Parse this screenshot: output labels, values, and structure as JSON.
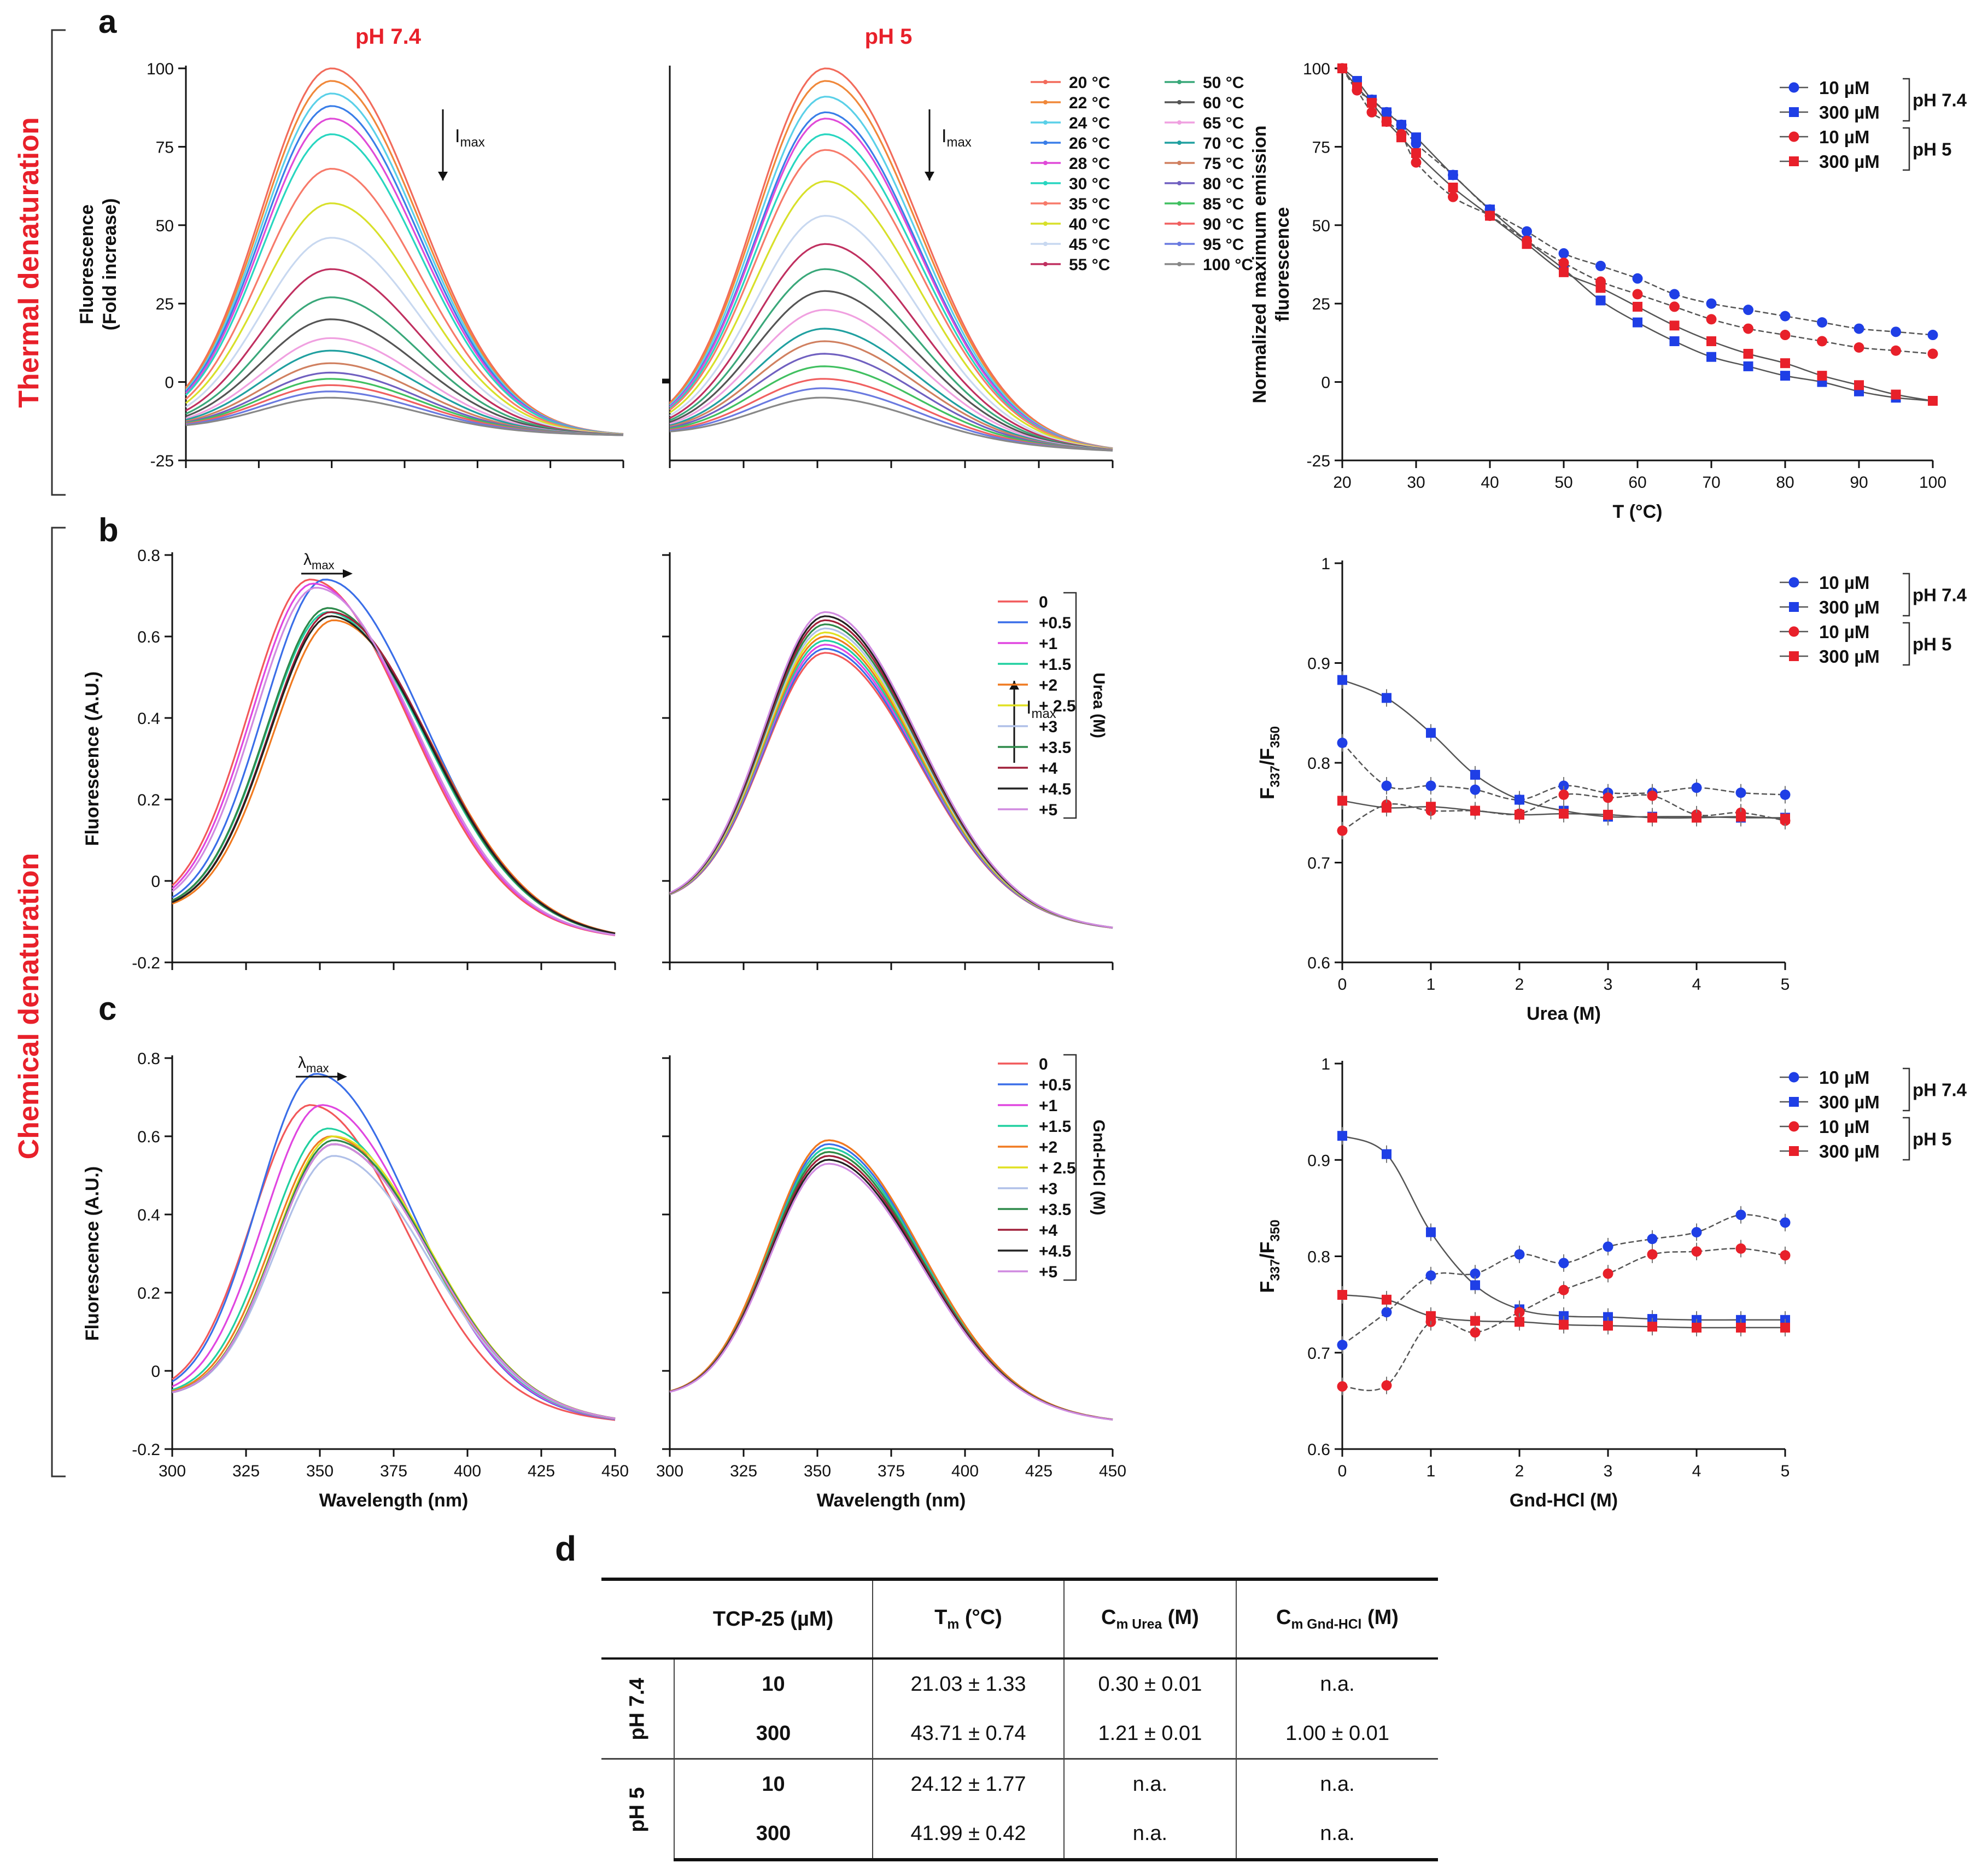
{
  "figure": {
    "section_labels": {
      "thermal": "Thermal denaturation",
      "chemical": "Chemical denaturation"
    },
    "panel_letters": {
      "a": "a",
      "b": "b",
      "c": "c",
      "d": "d"
    },
    "condition_titles": {
      "ph74": "pH 7.4",
      "ph5": "pH 5"
    },
    "colors": {
      "red": "#e8202a",
      "blue": "#1f3fe6",
      "black": "#111111"
    }
  },
  "chart_data": [
    {
      "id": "a1",
      "type": "line",
      "title": "pH 7.4",
      "ylabel": "Fluorescence\n(Fold increase)",
      "xlabel": "",
      "xlim": [
        300,
        450
      ],
      "ylim": [
        -25,
        100
      ],
      "yticks": [
        -25,
        0,
        25,
        50,
        75,
        100
      ],
      "annotation": "Imax (decreasing)",
      "peak_x": 350,
      "series_peaks": [
        100,
        96,
        92,
        88,
        84,
        79,
        68,
        57,
        46,
        36,
        27,
        20,
        14,
        10,
        6,
        3,
        1,
        -1,
        -3,
        -5
      ],
      "start_value": -15,
      "end_value": -17
    },
    {
      "id": "a2",
      "type": "line",
      "title": "pH 5",
      "xlim": [
        300,
        450
      ],
      "ylim": [
        -25,
        100
      ],
      "annotation": "Imax (decreasing)",
      "peak_x": 353,
      "series_peaks": [
        100,
        96,
        91,
        86,
        84,
        79,
        74,
        64,
        53,
        44,
        36,
        29,
        23,
        17,
        13,
        9,
        5,
        1,
        -2,
        -5
      ],
      "start_value": -17,
      "end_value": -22
    },
    {
      "id": "a3",
      "type": "scatter",
      "xlabel": "T (°C)",
      "ylabel": "Normalized maximum emission\nfluorescence",
      "xlim": [
        20,
        100
      ],
      "ylim": [
        -25,
        100
      ],
      "xticks": [
        20,
        30,
        40,
        50,
        60,
        70,
        80,
        90,
        100
      ],
      "yticks": [
        -25,
        0,
        25,
        50,
        75,
        100
      ],
      "x": [
        20,
        22,
        24,
        26,
        28,
        30,
        35,
        40,
        45,
        50,
        55,
        60,
        65,
        70,
        75,
        80,
        85,
        90,
        95,
        100
      ],
      "series": [
        {
          "name": "10 µM pH 7.4",
          "marker": "circle",
          "color": "blue",
          "values": [
            100,
            93,
            90,
            86,
            82,
            76,
            66,
            55,
            48,
            41,
            37,
            33,
            28,
            25,
            23,
            21,
            19,
            17,
            16,
            15
          ]
        },
        {
          "name": "300 µM pH 7.4",
          "marker": "square",
          "color": "blue",
          "values": [
            100,
            96,
            90,
            86,
            82,
            78,
            66,
            55,
            45,
            36,
            26,
            19,
            13,
            8,
            5,
            2,
            0,
            -3,
            -5,
            -6
          ]
        },
        {
          "name": "10 µM pH 5",
          "marker": "circle",
          "color": "red",
          "values": [
            100,
            93,
            86,
            83,
            79,
            70,
            59,
            53,
            45,
            38,
            32,
            28,
            24,
            20,
            17,
            15,
            13,
            11,
            10,
            9
          ]
        },
        {
          "name": "300 µM pH 5",
          "marker": "square",
          "color": "red",
          "values": [
            100,
            94,
            89,
            83,
            78,
            73,
            62,
            53,
            44,
            35,
            30,
            24,
            18,
            13,
            9,
            6,
            2,
            -1,
            -4,
            -6
          ]
        }
      ]
    },
    {
      "id": "b1",
      "type": "line",
      "ylabel": "Fluorescence (A.U.)",
      "xlim": [
        300,
        450
      ],
      "ylim": [
        -0.2,
        0.8
      ],
      "yticks": [
        -0.2,
        0.0,
        0.2,
        0.4,
        0.6,
        0.8
      ],
      "annotation": "λmax (shift right)",
      "series_peaks": [
        0.74,
        0.74,
        0.73,
        0.66,
        0.64,
        0.65,
        0.67,
        0.67,
        0.66,
        0.65,
        0.72
      ],
      "peak_positions": [
        347,
        352,
        348,
        353,
        355,
        354,
        353,
        353,
        354,
        354,
        349
      ],
      "start_value": -0.08,
      "end_value": -0.14
    },
    {
      "id": "b2",
      "type": "line",
      "xlim": [
        300,
        450
      ],
      "ylim": [
        -0.2,
        0.8
      ],
      "annotation": "Imax (increasing)",
      "peak_x": 353,
      "series_peaks": [
        0.56,
        0.57,
        0.58,
        0.59,
        0.6,
        0.61,
        0.62,
        0.63,
        0.64,
        0.65,
        0.66
      ],
      "start_value": -0.06,
      "end_value": -0.12,
      "legend_title": "Urea (M)"
    },
    {
      "id": "b3",
      "type": "scatter",
      "xlabel": "Urea (M)",
      "ylabel": "F337/F350",
      "xlim": [
        0,
        5
      ],
      "ylim": [
        0.6,
        1.0
      ],
      "xticks": [
        0,
        1,
        2,
        3,
        4,
        5
      ],
      "yticks": [
        0.6,
        0.7,
        0.8,
        0.9,
        1.0
      ],
      "x": [
        0,
        0.5,
        1,
        1.5,
        2,
        2.5,
        3,
        3.5,
        4,
        4.5,
        5
      ],
      "series": [
        {
          "name": "10 µM pH 7.4",
          "marker": "circle",
          "color": "blue",
          "values": [
            0.82,
            0.777,
            0.777,
            0.773,
            0.763,
            0.777,
            0.77,
            0.77,
            0.775,
            0.77,
            0.768
          ]
        },
        {
          "name": "300 µM pH 7.4",
          "marker": "square",
          "color": "blue",
          "values": [
            0.883,
            0.865,
            0.83,
            0.788,
            0.763,
            0.752,
            0.746,
            0.746,
            0.746,
            0.745,
            0.745
          ]
        },
        {
          "name": "10 µM pH 5",
          "marker": "circle",
          "color": "red",
          "values": [
            0.732,
            0.758,
            0.752,
            0.752,
            0.749,
            0.768,
            0.765,
            0.767,
            0.748,
            0.75,
            0.742
          ]
        },
        {
          "name": "300 µM pH 5",
          "marker": "square",
          "color": "red",
          "values": [
            0.762,
            0.755,
            0.756,
            0.752,
            0.748,
            0.749,
            0.748,
            0.745,
            0.745,
            0.746,
            0.744
          ]
        }
      ]
    },
    {
      "id": "c1",
      "type": "line",
      "ylabel": "Fluorescence (A.U.)",
      "xlabel": "Wavelength (nm)",
      "xlim": [
        300,
        450
      ],
      "ylim": [
        -0.2,
        0.8
      ],
      "xticks": [
        300,
        325,
        350,
        375,
        400,
        425,
        450
      ],
      "yticks": [
        -0.2,
        0.0,
        0.2,
        0.4,
        0.6,
        0.8
      ],
      "annotation": "λmax (shift right)",
      "series_peaks": [
        0.68,
        0.76,
        0.68,
        0.62,
        0.6,
        0.6,
        0.55,
        0.59,
        0.58,
        0.58,
        0.58
      ],
      "peak_positions": [
        347,
        349,
        351,
        353,
        354,
        355,
        355,
        355,
        355,
        355,
        355
      ],
      "start_value": -0.07,
      "end_value": -0.13
    },
    {
      "id": "c2",
      "type": "line",
      "xlabel": "Wavelength (nm)",
      "xlim": [
        300,
        450
      ],
      "ylim": [
        -0.2,
        0.8
      ],
      "xticks": [
        300,
        325,
        350,
        375,
        400,
        425,
        450
      ],
      "series_peaks": [
        0.59,
        0.58,
        0.57,
        0.57,
        0.59,
        0.56,
        0.55,
        0.56,
        0.55,
        0.54,
        0.53
      ],
      "peak_x": 354,
      "start_value": -0.07,
      "end_value": -0.13,
      "legend_title": "Gnd-HCl (M)"
    },
    {
      "id": "c3",
      "type": "scatter",
      "xlabel": "Gnd-HCl (M)",
      "ylabel": "F337/F350",
      "xlim": [
        0,
        5
      ],
      "ylim": [
        0.6,
        1.0
      ],
      "xticks": [
        0,
        1,
        2,
        3,
        4,
        5
      ],
      "yticks": [
        0.6,
        0.7,
        0.8,
        0.9,
        1.0
      ],
      "x": [
        0,
        0.5,
        1,
        1.5,
        2,
        2.5,
        3,
        3.5,
        4,
        4.5,
        5
      ],
      "series": [
        {
          "name": "10 µM pH 7.4",
          "marker": "circle",
          "color": "blue",
          "values": [
            0.708,
            0.742,
            0.78,
            0.782,
            0.802,
            0.793,
            0.81,
            0.818,
            0.825,
            0.843,
            0.835
          ]
        },
        {
          "name": "300 µM pH 7.4",
          "marker": "square",
          "color": "blue",
          "values": [
            0.925,
            0.906,
            0.825,
            0.77,
            0.745,
            0.738,
            0.737,
            0.735,
            0.734,
            0.734,
            0.734
          ]
        },
        {
          "name": "10 µM pH 5",
          "marker": "circle",
          "color": "red",
          "values": [
            0.665,
            0.666,
            0.732,
            0.721,
            0.742,
            0.765,
            0.782,
            0.802,
            0.805,
            0.808,
            0.801
          ]
        },
        {
          "name": "300 µM pH 5",
          "marker": "square",
          "color": "red",
          "values": [
            0.76,
            0.755,
            0.738,
            0.733,
            0.732,
            0.729,
            0.728,
            0.727,
            0.726,
            0.726,
            0.726
          ]
        }
      ]
    }
  ],
  "legends": {
    "temperature": [
      "20 °C",
      "22 °C",
      "24 °C",
      "26 °C",
      "28 °C",
      "30 °C",
      "35 °C",
      "40 °C",
      "45 °C",
      "55 °C",
      "50 °C",
      "60 °C",
      "65 °C",
      "70 °C",
      "75 °C",
      "80 °C",
      "85 °C",
      "90 °C",
      "95 °C",
      "100 °C"
    ],
    "temperature_colors": [
      "#f26b5b",
      "#f0883a",
      "#5ad0e8",
      "#3a7ee8",
      "#e04ad8",
      "#28d6c0",
      "#f77a6a",
      "#d8e02a",
      "#c8d8f0",
      "#c03060",
      "#3aa87a",
      "#555555",
      "#f0a0e0",
      "#20a0a0",
      "#d08060",
      "#7060c0",
      "#40c060",
      "#f06060",
      "#6a7ae0",
      "#888888"
    ],
    "concentration": [
      "0",
      "+0.5",
      "+1",
      "+1.5",
      "+2",
      "+ 2.5",
      "+3",
      "+3.5",
      "+4",
      "+4.5",
      "+5"
    ],
    "concentration_colors": [
      "#f2585a",
      "#3a6ee8",
      "#e046e0",
      "#20d0a0",
      "#f07a20",
      "#e0e020",
      "#b0c0e8",
      "#2e8a4a",
      "#a0203a",
      "#222222",
      "#d08ae0"
    ],
    "scatter_entries": [
      "10 µM",
      "300 µM",
      "10 µM",
      "300 µM"
    ],
    "scatter_groups": [
      "pH 7.4",
      "pH 5"
    ]
  },
  "annotations": {
    "imax": "I",
    "imax_sub": "max",
    "lmax": "λ",
    "lmax_sub": "max",
    "ratio_main": "F",
    "ratio_sub1": "337",
    "ratio_slash": "/F",
    "ratio_sub2": "350"
  },
  "table": {
    "headers": [
      "TCP-25 (µM)",
      "Tm (°C)",
      "Cm Urea (M)",
      "Cm Gnd-HCl (M)"
    ],
    "header_main": {
      "tm": "T",
      "tm_sub": "m",
      "tm_unit": " (°C)",
      "cm": "C",
      "cm_sub_urea": "m Urea",
      "cm_sub_gnd": "m Gnd-HCl",
      "cm_unit": " (M)"
    },
    "groups": [
      {
        "label": "pH 7.4",
        "rows": [
          {
            "conc": "10",
            "tm": "21.03 ± 1.33",
            "cm_urea": "0.30 ± 0.01",
            "cm_gnd": "n.a."
          },
          {
            "conc": "300",
            "tm": "43.71 ± 0.74",
            "cm_urea": "1.21 ± 0.01",
            "cm_gnd": "1.00 ± 0.01"
          }
        ]
      },
      {
        "label": "pH 5",
        "rows": [
          {
            "conc": "10",
            "tm": "24.12 ± 1.77",
            "cm_urea": "n.a.",
            "cm_gnd": "n.a."
          },
          {
            "conc": "300",
            "tm": "41.99 ± 0.42",
            "cm_urea": "n.a.",
            "cm_gnd": "n.a."
          }
        ]
      }
    ]
  }
}
